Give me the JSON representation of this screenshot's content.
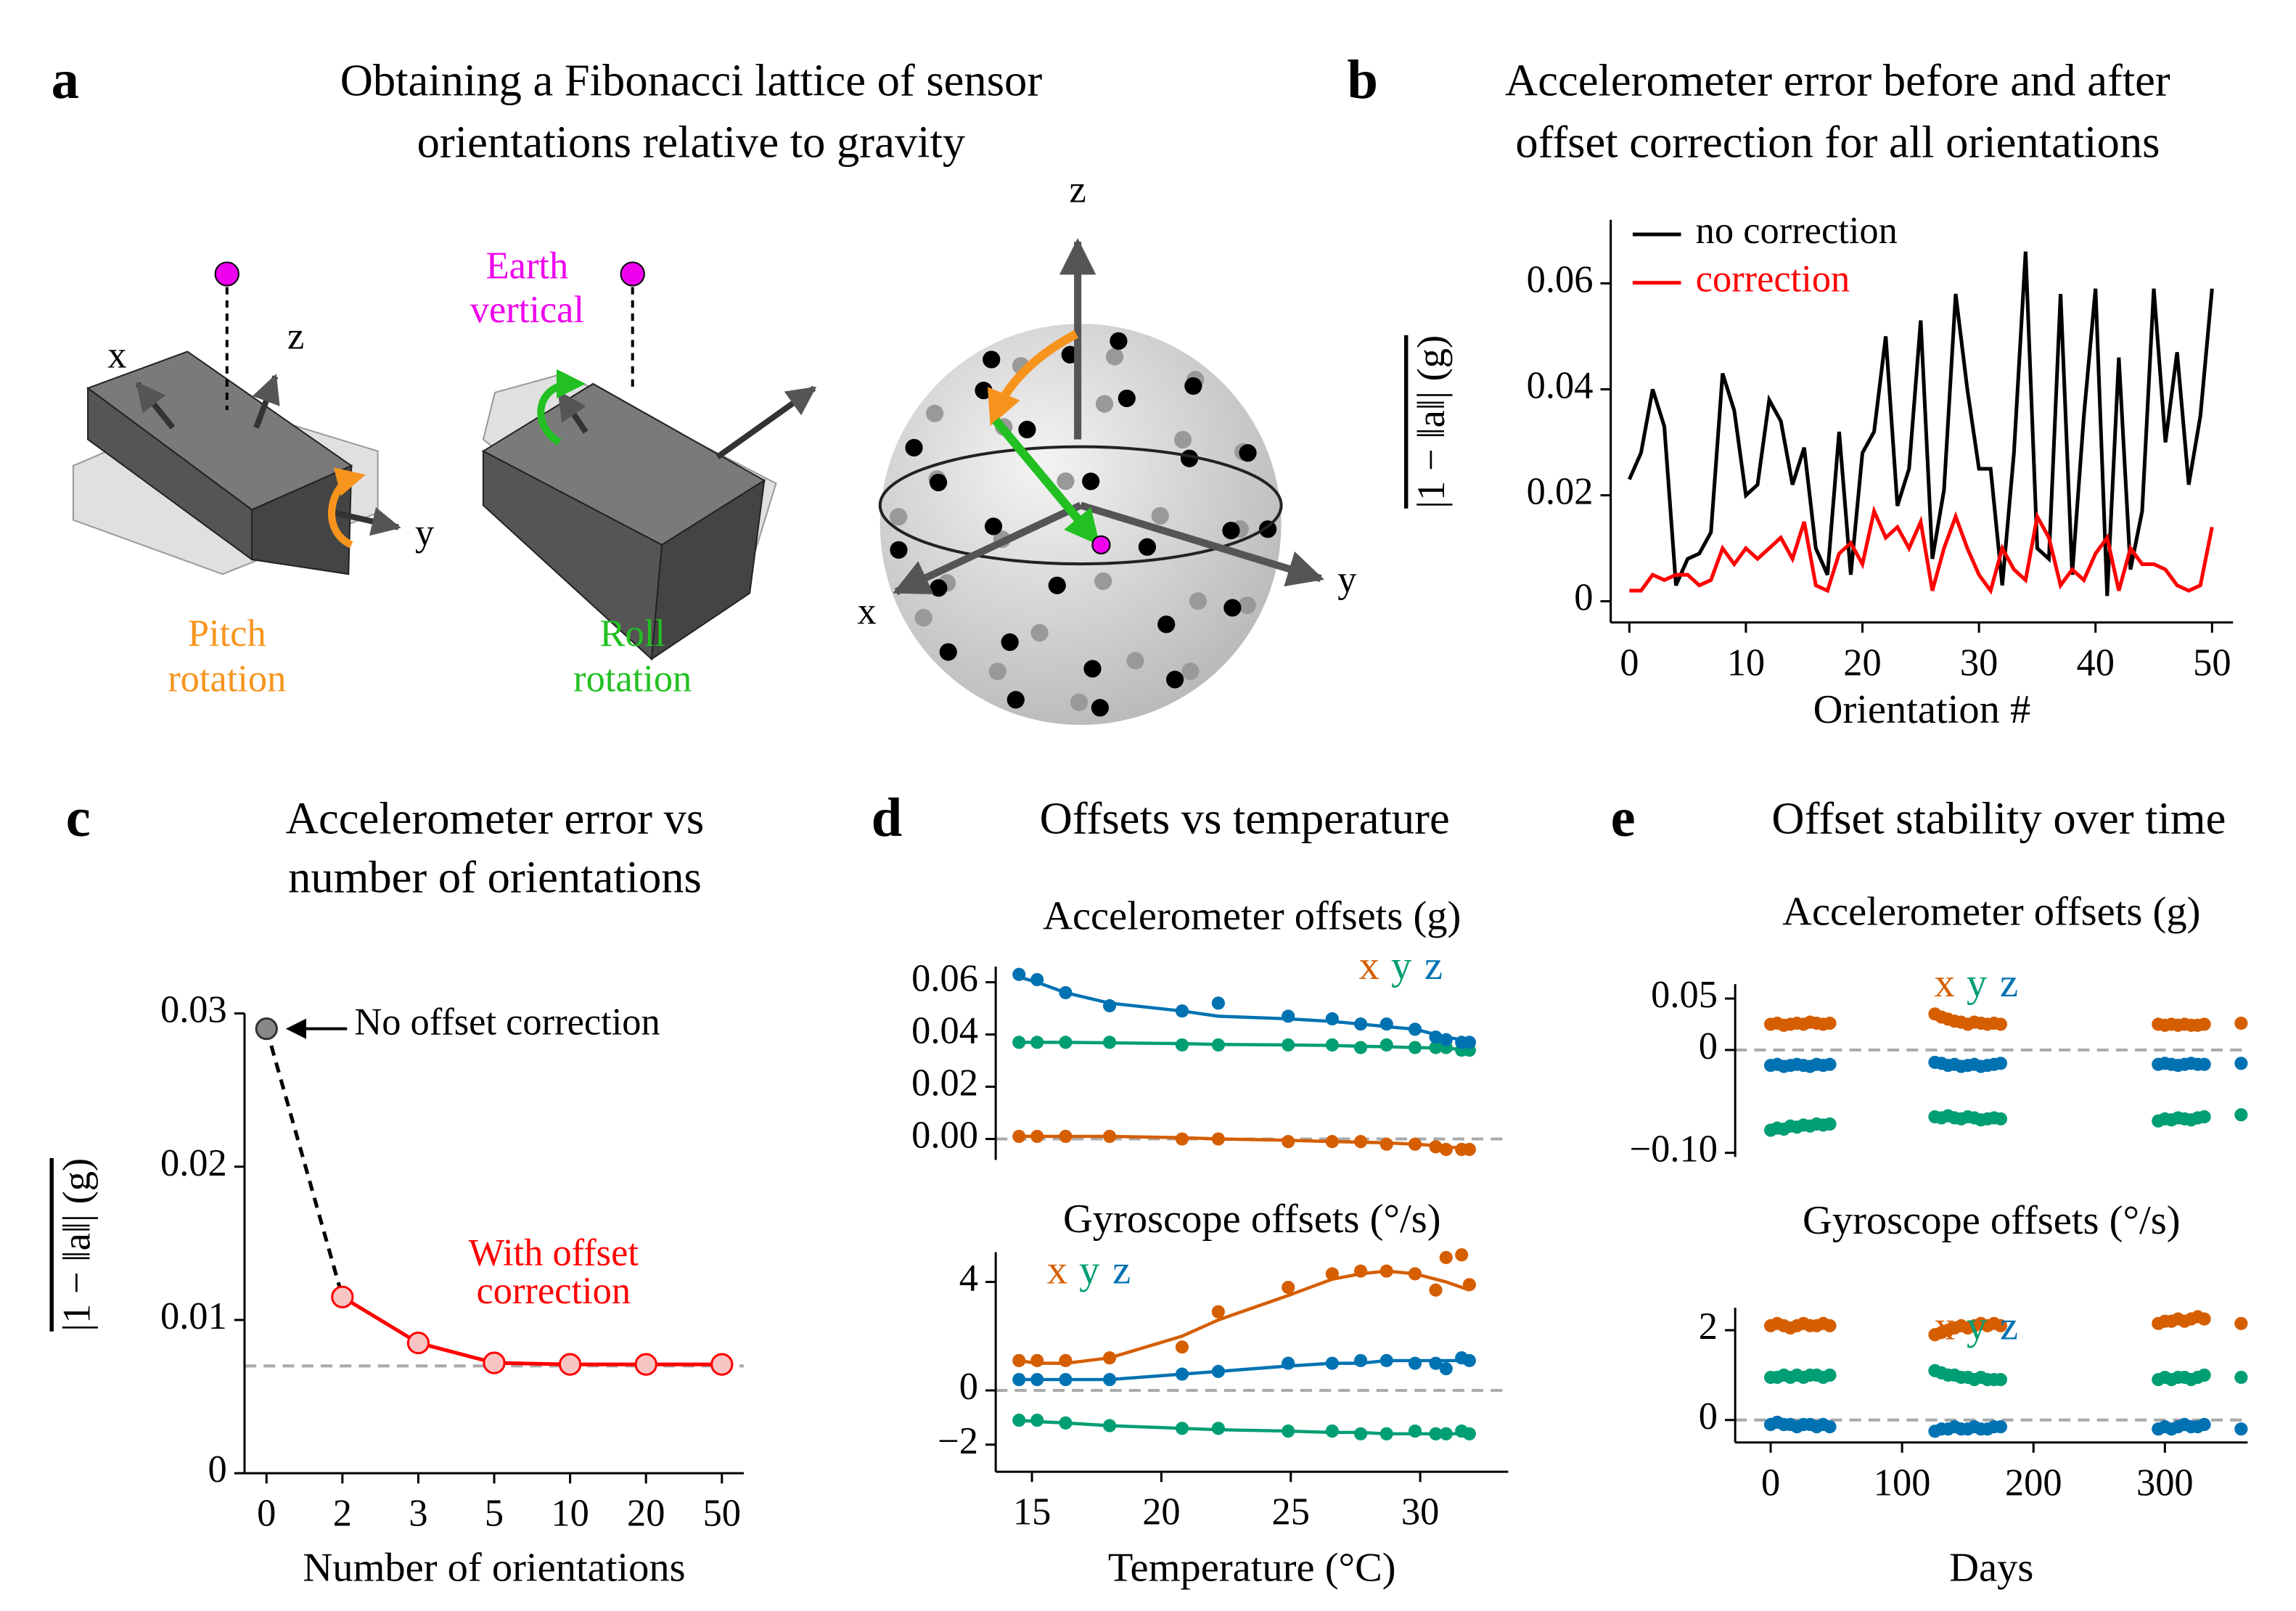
{
  "diagram": {
    "panel": "a",
    "title": [
      "Obtaining a Fibonacci lattice of sensor",
      "orientations relative to gravity"
    ],
    "box_axes": [
      "x",
      "z",
      "y"
    ],
    "earth_vertical": [
      "Earth",
      "vertical"
    ],
    "pitch": [
      "Pitch",
      "rotation"
    ],
    "roll": [
      "Roll",
      "rotation"
    ],
    "sphere_axes": [
      "z",
      "y",
      "x"
    ]
  },
  "chart_data": [
    {
      "type": "line",
      "panel": "b",
      "title": [
        "Accelerometer error before and after",
        "offset correction for all orientations"
      ],
      "xlabel": "Orientation #",
      "ylabel": "|1 − ‖a‖| (g)",
      "legend": "upper left",
      "x": [
        0,
        1,
        2,
        3,
        4,
        5,
        6,
        7,
        8,
        9,
        10,
        11,
        12,
        13,
        14,
        15,
        16,
        17,
        18,
        19,
        20,
        21,
        22,
        23,
        24,
        25,
        26,
        27,
        28,
        29,
        30,
        31,
        32,
        33,
        34,
        35,
        36,
        37,
        38,
        39,
        40,
        41,
        42,
        43,
        44,
        45,
        46,
        47,
        48,
        49,
        50
      ],
      "xlim": [
        -1.6,
        51.8
      ],
      "xticks": [
        0,
        10,
        20,
        30,
        40,
        50
      ],
      "ylim": [
        -0.004,
        0.072
      ],
      "yticks": [
        0,
        0.02,
        0.04,
        0.06
      ],
      "series": [
        {
          "name": "no correction",
          "color": "#000000",
          "values": [
            0.023,
            0.028,
            0.04,
            0.033,
            0.003,
            0.008,
            0.009,
            0.013,
            0.043,
            0.036,
            0.02,
            0.022,
            0.038,
            0.034,
            0.022,
            0.029,
            0.01,
            0.005,
            0.032,
            0.005,
            0.028,
            0.032,
            0.05,
            0.018,
            0.025,
            0.053,
            0.008,
            0.021,
            0.058,
            0.04,
            0.025,
            0.025,
            0.003,
            0.028,
            0.066,
            0.01,
            0.008,
            0.058,
            0.005,
            0.035,
            0.059,
            0.001,
            0.046,
            0.006,
            0.017,
            0.059,
            0.03,
            0.047,
            0.022,
            0.035,
            0.059
          ]
        },
        {
          "name": "correction",
          "color": "#ff0000",
          "values": [
            0.002,
            0.002,
            0.005,
            0.004,
            0.005,
            0.005,
            0.003,
            0.004,
            0.01,
            0.007,
            0.01,
            0.008,
            0.01,
            0.012,
            0.008,
            0.015,
            0.003,
            0.002,
            0.009,
            0.011,
            0.007,
            0.017,
            0.012,
            0.014,
            0.01,
            0.015,
            0.002,
            0.01,
            0.016,
            0.01,
            0.005,
            0.002,
            0.01,
            0.006,
            0.004,
            0.016,
            0.012,
            0.003,
            0.006,
            0.004,
            0.009,
            0.012,
            0.002,
            0.01,
            0.007,
            0.007,
            0.006,
            0.003,
            0.002,
            0.003,
            0.014
          ]
        }
      ]
    },
    {
      "type": "line",
      "panel": "c",
      "title": [
        "Accelerometer error vs",
        "number of orientations"
      ],
      "xlabel": "Number of orientations",
      "ylabel": "|1 − ‖a‖| (g)",
      "categories": [
        "0",
        "2",
        "3",
        "5",
        "10",
        "20",
        "50"
      ],
      "values": [
        0.029,
        0.0115,
        0.0085,
        0.0072,
        0.0071,
        0.0071,
        0.0071
      ],
      "color": "#ff0000",
      "baseline_color": "#888888",
      "ylim": [
        0,
        0.03
      ],
      "yticks": [
        0,
        0.01,
        0.02,
        0.03
      ],
      "reference_line": 0.007,
      "annotations": [
        "No offset correction",
        "With offset",
        "correction"
      ]
    },
    {
      "type": "scatter",
      "panel": "d",
      "suptitle": "Offsets vs temperature",
      "title": "Accelerometer offsets (g)",
      "legend": "upper right",
      "x": [
        14.5,
        15.2,
        16.3,
        18,
        20.8,
        22.2,
        24.9,
        26.6,
        27.7,
        28.7,
        29.8,
        30.6,
        31,
        31.6,
        31.9
      ],
      "xlim": [
        13.6,
        33.4
      ],
      "ylim": [
        -0.008,
        0.066
      ],
      "yticks": [
        {
          "value": 0,
          "label": "0.00"
        },
        0.02,
        0.04,
        0.06
      ],
      "reference_line": 0,
      "series": [
        {
          "name": "x",
          "color": "#d55e00",
          "values": [
            0.001,
            0.001,
            0.001,
            0.001,
            0,
            0,
            -0.001,
            -0.001,
            -0.001,
            -0.002,
            -0.002,
            -0.003,
            -0.004,
            -0.004,
            -0.004
          ],
          "fit": [
            0.001,
            0.001,
            0.001,
            0.001,
            0.0005,
            0,
            -0.0005,
            -0.001,
            -0.0012,
            -0.0015,
            -0.002,
            -0.0025,
            -0.003,
            -0.0035,
            -0.004
          ]
        },
        {
          "name": "y",
          "color": "#009e73",
          "values": [
            0.037,
            0.037,
            0.037,
            0.037,
            0.036,
            0.036,
            0.036,
            0.036,
            0.035,
            0.036,
            0.035,
            0.035,
            0.035,
            0.034,
            0.034
          ],
          "fit": [
            0.037,
            0.037,
            0.037,
            0.0368,
            0.0365,
            0.0362,
            0.036,
            0.0358,
            0.0355,
            0.0353,
            0.035,
            0.0348,
            0.0346,
            0.0344,
            0.0342
          ]
        },
        {
          "name": "z",
          "color": "#0072b2",
          "values": [
            0.063,
            0.061,
            0.056,
            0.051,
            0.049,
            0.052,
            0.047,
            0.046,
            0.044,
            0.044,
            0.042,
            0.039,
            0.038,
            0.037,
            0.037
          ],
          "fit": [
            0.062,
            0.06,
            0.056,
            0.052,
            0.049,
            0.047,
            0.046,
            0.045,
            0.044,
            0.043,
            0.042,
            0.04,
            0.039,
            0.038,
            0.037
          ]
        }
      ]
    },
    {
      "type": "scatter",
      "title": "Gyroscope offsets (°/s)",
      "legend": "upper left",
      "xlabel": "Temperature (°C)",
      "x": [
        14.5,
        15.2,
        16.3,
        18,
        20.8,
        22.2,
        24.9,
        26.6,
        27.7,
        28.7,
        29.8,
        30.6,
        31,
        31.6,
        31.9
      ],
      "xlim": [
        13.6,
        33.4
      ],
      "xticks": [
        15,
        20,
        25,
        30
      ],
      "ylim": [
        -3,
        5.1
      ],
      "yticks": [
        {
          "value": -2,
          "label": "−2"
        },
        0,
        4
      ],
      "reference_line": 0,
      "series": [
        {
          "name": "x",
          "color": "#d55e00",
          "values": [
            1.1,
            1.1,
            1.1,
            1.2,
            1.6,
            2.9,
            3.8,
            4.3,
            4.4,
            4.4,
            4.3,
            3.7,
            4.9,
            5.0,
            3.9
          ],
          "fit": [
            1.1,
            1.0,
            1.0,
            1.2,
            2.0,
            2.6,
            3.5,
            4.1,
            4.3,
            4.4,
            4.3,
            4.1,
            4.0,
            3.8,
            3.7
          ]
        },
        {
          "name": "y",
          "color": "#009e73",
          "values": [
            -1.1,
            -1.1,
            -1.2,
            -1.3,
            -1.4,
            -1.4,
            -1.5,
            -1.5,
            -1.6,
            -1.6,
            -1.5,
            -1.6,
            -1.6,
            -1.5,
            -1.6
          ],
          "fit": [
            -1.1,
            -1.15,
            -1.2,
            -1.3,
            -1.4,
            -1.45,
            -1.5,
            -1.55,
            -1.55,
            -1.6,
            -1.6,
            -1.6,
            -1.6,
            -1.6,
            -1.6
          ]
        },
        {
          "name": "z",
          "color": "#0072b2",
          "values": [
            0.4,
            0.4,
            0.4,
            0.4,
            0.6,
            0.7,
            1.0,
            1.0,
            1.1,
            1.1,
            1.0,
            1.0,
            0.8,
            1.2,
            1.1
          ],
          "fit": [
            0.4,
            0.4,
            0.4,
            0.4,
            0.6,
            0.7,
            0.9,
            1.0,
            1.0,
            1.1,
            1.1,
            1.1,
            1.1,
            1.1,
            1.1
          ]
        }
      ]
    },
    {
      "type": "scatter",
      "panel": "e",
      "suptitle": "Offset stability over time",
      "title": "Accelerometer offsets (g)",
      "legend": "upper center",
      "x": [
        0,
        5,
        10,
        15,
        20,
        25,
        30,
        35,
        40,
        45,
        125,
        130,
        135,
        140,
        145,
        150,
        155,
        160,
        165,
        170,
        175,
        295,
        300,
        305,
        310,
        315,
        320,
        325,
        330,
        358
      ],
      "xlim": [
        -27,
        363
      ],
      "ylim": [
        -0.104,
        0.064
      ],
      "yticks": [
        {
          "value": -0.1,
          "label": "−0.10"
        },
        0,
        0.05
      ],
      "reference_line": 0,
      "series": [
        {
          "name": "x",
          "color": "#d55e00",
          "values": [
            0.025,
            0.026,
            0.024,
            0.025,
            0.026,
            0.025,
            0.027,
            0.026,
            0.025,
            0.026,
            0.035,
            0.032,
            0.03,
            0.028,
            0.027,
            0.025,
            0.027,
            0.026,
            0.025,
            0.026,
            0.025,
            0.025,
            0.024,
            0.025,
            0.024,
            0.025,
            0.024,
            0.024,
            0.025,
            0.026
          ]
        },
        {
          "name": "y",
          "color": "#009e73",
          "values": [
            -0.078,
            -0.076,
            -0.077,
            -0.074,
            -0.075,
            -0.073,
            -0.074,
            -0.072,
            -0.073,
            -0.072,
            -0.065,
            -0.066,
            -0.064,
            -0.066,
            -0.067,
            -0.065,
            -0.066,
            -0.068,
            -0.067,
            -0.066,
            -0.067,
            -0.069,
            -0.067,
            -0.068,
            -0.066,
            -0.067,
            -0.068,
            -0.066,
            -0.065,
            -0.063
          ]
        },
        {
          "name": "z",
          "color": "#0072b2",
          "values": [
            -0.015,
            -0.014,
            -0.016,
            -0.015,
            -0.014,
            -0.015,
            -0.016,
            -0.014,
            -0.015,
            -0.014,
            -0.012,
            -0.013,
            -0.015,
            -0.014,
            -0.016,
            -0.015,
            -0.014,
            -0.016,
            -0.015,
            -0.014,
            -0.013,
            -0.014,
            -0.013,
            -0.014,
            -0.015,
            -0.014,
            -0.013,
            -0.014,
            -0.014,
            -0.013
          ]
        }
      ]
    },
    {
      "type": "scatter",
      "title": "Gyroscope offsets (°/s)",
      "legend": "upper center",
      "xlabel": "Days",
      "x": [
        0,
        5,
        10,
        15,
        20,
        25,
        30,
        35,
        40,
        45,
        125,
        130,
        135,
        140,
        145,
        150,
        155,
        160,
        165,
        170,
        175,
        295,
        300,
        305,
        310,
        315,
        320,
        325,
        330,
        358
      ],
      "xlim": [
        -27,
        363
      ],
      "xticks": [
        0,
        100,
        200,
        300
      ],
      "ylim": [
        -0.5,
        2.5
      ],
      "yticks": [
        0,
        2
      ],
      "reference_line": 0,
      "series": [
        {
          "name": "x",
          "color": "#d55e00",
          "values": [
            2.1,
            2.15,
            2.1,
            2.05,
            2.1,
            2.15,
            2.1,
            2.1,
            2.15,
            2.1,
            1.9,
            1.95,
            2.0,
            2.05,
            2.1,
            2.05,
            2.1,
            2.15,
            2.1,
            2.15,
            2.1,
            2.15,
            2.2,
            2.2,
            2.25,
            2.2,
            2.25,
            2.3,
            2.25,
            2.15
          ]
        },
        {
          "name": "y",
          "color": "#009e73",
          "values": [
            0.95,
            0.95,
            1.0,
            0.95,
            1.0,
            0.95,
            1.0,
            1.0,
            0.95,
            1.0,
            1.1,
            1.05,
            1.0,
            1.0,
            0.95,
            0.95,
            0.9,
            0.95,
            0.9,
            0.9,
            0.9,
            0.9,
            0.95,
            0.9,
            0.95,
            0.95,
            0.9,
            0.95,
            1.0,
            0.95
          ]
        },
        {
          "name": "z",
          "color": "#0072b2",
          "values": [
            -0.1,
            -0.05,
            -0.1,
            -0.1,
            -0.15,
            -0.1,
            -0.1,
            -0.15,
            -0.1,
            -0.15,
            -0.25,
            -0.2,
            -0.2,
            -0.15,
            -0.2,
            -0.2,
            -0.15,
            -0.2,
            -0.2,
            -0.15,
            -0.15,
            -0.2,
            -0.15,
            -0.2,
            -0.15,
            -0.1,
            -0.15,
            -0.15,
            -0.1,
            -0.2
          ]
        }
      ]
    }
  ]
}
